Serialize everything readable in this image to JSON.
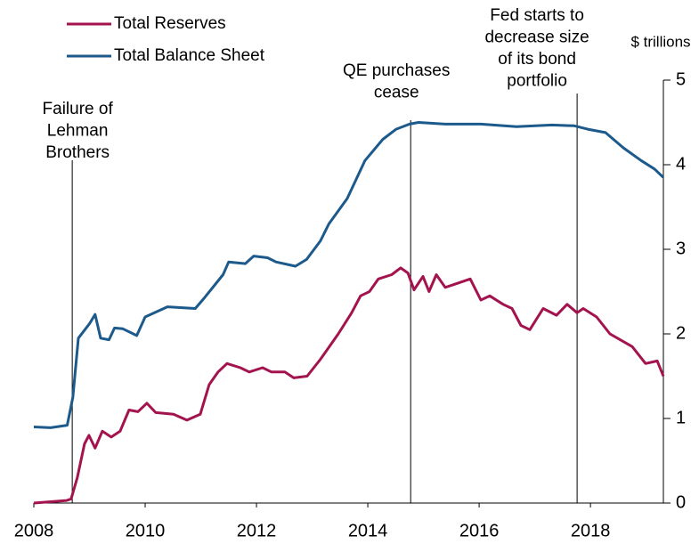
{
  "chart_data": {
    "type": "line",
    "y_axis_label": "$ trillions",
    "xlim": [
      2008,
      2019.31
    ],
    "xticks": [
      2008,
      2010,
      2012,
      2014,
      2016,
      2018
    ],
    "ylim": [
      0,
      5
    ],
    "yticks": [
      0,
      1,
      2,
      3,
      4,
      5
    ],
    "legend": "upper left",
    "annotations": [
      {
        "lines": [
          "Failure of",
          "Lehman",
          "Brothers"
        ],
        "x": 2008.69
      },
      {
        "lines": [
          "QE purchases",
          "cease"
        ],
        "x": 2014.77
      },
      {
        "lines": [
          "Fed starts to",
          "decrease size",
          "of its bond",
          "portfolio"
        ],
        "x": 2017.76
      }
    ],
    "series": [
      {
        "name": "Total Reserves",
        "color": "#a3134e",
        "x": [
          2008.0,
          2008.59,
          2008.67,
          2008.78,
          2008.91,
          2008.99,
          2009.1,
          2009.23,
          2009.39,
          2009.55,
          2009.71,
          2009.87,
          2010.03,
          2010.19,
          2010.51,
          2010.75,
          2010.99,
          2011.15,
          2011.31,
          2011.47,
          2011.71,
          2011.87,
          2012.11,
          2012.27,
          2012.51,
          2012.67,
          2012.91,
          2013.15,
          2013.47,
          2013.71,
          2013.87,
          2014.03,
          2014.19,
          2014.43,
          2014.59,
          2014.72,
          2014.83,
          2014.99,
          2015.1,
          2015.23,
          2015.39,
          2015.71,
          2015.84,
          2016.03,
          2016.19,
          2016.43,
          2016.59,
          2016.75,
          2016.91,
          2017.15,
          2017.39,
          2017.58,
          2017.76,
          2017.87,
          2018.11,
          2018.35,
          2018.75,
          2018.99,
          2019.2,
          2019.31
        ],
        "values": [
          0.0,
          0.03,
          0.05,
          0.3,
          0.7,
          0.8,
          0.65,
          0.85,
          0.78,
          0.85,
          1.1,
          1.08,
          1.18,
          1.07,
          1.05,
          0.98,
          1.05,
          1.4,
          1.55,
          1.65,
          1.6,
          1.55,
          1.6,
          1.55,
          1.55,
          1.48,
          1.5,
          1.7,
          2.0,
          2.25,
          2.45,
          2.5,
          2.65,
          2.7,
          2.78,
          2.72,
          2.52,
          2.68,
          2.5,
          2.7,
          2.55,
          2.62,
          2.65,
          2.4,
          2.45,
          2.35,
          2.3,
          2.1,
          2.05,
          2.3,
          2.22,
          2.35,
          2.25,
          2.3,
          2.2,
          2.0,
          1.85,
          1.65,
          1.68,
          1.5
        ]
      },
      {
        "name": "Total Balance Sheet",
        "color": "#1d5a8c",
        "x": [
          2008.0,
          2008.3,
          2008.6,
          2008.7,
          2008.8,
          2009.0,
          2009.1,
          2009.2,
          2009.35,
          2009.45,
          2009.6,
          2009.85,
          2010.0,
          2010.4,
          2010.9,
          2011.07,
          2011.4,
          2011.5,
          2011.8,
          2011.95,
          2012.2,
          2012.35,
          2012.7,
          2012.9,
          2013.15,
          2013.3,
          2013.63,
          2013.95,
          2014.27,
          2014.51,
          2014.75,
          2014.91,
          2015.39,
          2016.03,
          2016.67,
          2017.31,
          2017.71,
          2017.95,
          2018.27,
          2018.59,
          2018.91,
          2019.15,
          2019.31
        ],
        "values": [
          0.9,
          0.89,
          0.92,
          1.25,
          1.95,
          2.12,
          2.23,
          1.95,
          1.93,
          2.07,
          2.06,
          1.98,
          2.2,
          2.32,
          2.3,
          2.43,
          2.7,
          2.85,
          2.83,
          2.92,
          2.9,
          2.85,
          2.8,
          2.88,
          3.1,
          3.3,
          3.6,
          4.05,
          4.3,
          4.42,
          4.48,
          4.5,
          4.48,
          4.48,
          4.45,
          4.47,
          4.46,
          4.42,
          4.38,
          4.2,
          4.05,
          3.95,
          3.85
        ]
      }
    ]
  }
}
